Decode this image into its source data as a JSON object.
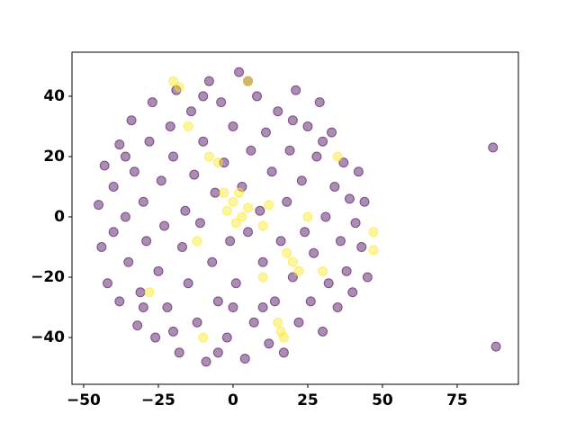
{
  "chart_data": {
    "type": "scatter",
    "xlim": [
      -53.9,
      95.5
    ],
    "ylim": [
      -55.5,
      54.6
    ],
    "xticks": [
      {
        "value": -50,
        "label": "−50"
      },
      {
        "value": -25,
        "label": "−25"
      },
      0,
      25,
      50,
      75
    ],
    "yticks": [
      {
        "value": -40,
        "label": "−40"
      },
      {
        "value": -20,
        "label": "−20"
      },
      0,
      20,
      40
    ],
    "series": [
      {
        "color": "#440154",
        "x": [
          -45,
          -44,
          -43,
          -42,
          -40,
          -40,
          -38,
          -38,
          -36,
          -35,
          -34,
          -33,
          -32,
          -31,
          -30,
          -29,
          -28,
          -27,
          -26,
          -25,
          -24,
          -23,
          -22,
          -21,
          -20,
          -19,
          -18,
          -17,
          -16,
          -15,
          -14,
          -13,
          -12,
          -11,
          -10,
          -9,
          -8,
          -7,
          -6,
          -5,
          -4,
          -3,
          -2,
          -1,
          0,
          1,
          2,
          3,
          4,
          5,
          6,
          7,
          8,
          9,
          10,
          11,
          12,
          13,
          14,
          15,
          16,
          17,
          18,
          19,
          20,
          21,
          22,
          23,
          24,
          25,
          26,
          27,
          28,
          29,
          30,
          31,
          32,
          33,
          34,
          35,
          36,
          37,
          38,
          39,
          40,
          41,
          42,
          43,
          44,
          45,
          -36,
          -30,
          -20,
          -10,
          0,
          10,
          20,
          30,
          -5,
          5,
          87,
          88
        ],
        "values": [
          4,
          -10,
          17,
          -22,
          10,
          -5,
          24,
          -28,
          0,
          -15,
          32,
          15,
          -36,
          -25,
          5,
          -8,
          25,
          38,
          -40,
          -18,
          12,
          -3,
          -30,
          30,
          20,
          42,
          -45,
          -10,
          2,
          -22,
          35,
          14,
          -35,
          -2,
          25,
          -48,
          45,
          -15,
          8,
          -28,
          38,
          18,
          -40,
          -8,
          30,
          -22,
          48,
          10,
          -47,
          -5,
          22,
          -35,
          40,
          2,
          -15,
          28,
          -42,
          15,
          -28,
          35,
          -8,
          -45,
          5,
          22,
          -20,
          42,
          -35,
          12,
          -5,
          30,
          -28,
          -12,
          20,
          38,
          -38,
          0,
          -22,
          28,
          10,
          -30,
          -8,
          18,
          -18,
          6,
          -25,
          -2,
          15,
          -10,
          5,
          -20,
          20,
          -30,
          -38,
          40,
          -30,
          -30,
          32,
          25,
          -45,
          45,
          23,
          -43
        ]
      },
      {
        "color": "#fde725",
        "x": [
          0,
          2,
          -2,
          3,
          1,
          5,
          -3,
          12,
          10,
          -8,
          -5,
          20,
          18,
          22,
          -12,
          15,
          17,
          16,
          25,
          -20,
          -18,
          5,
          47,
          47,
          30,
          -28,
          -10,
          35,
          -15,
          10
        ],
        "values": [
          5,
          8,
          2,
          0,
          -2,
          3,
          8,
          4,
          -3,
          20,
          18,
          -15,
          -12,
          -18,
          -8,
          -35,
          -40,
          -38,
          0,
          45,
          43,
          45,
          -5,
          -11,
          -18,
          -25,
          -40,
          20,
          30,
          -20
        ]
      }
    ]
  }
}
